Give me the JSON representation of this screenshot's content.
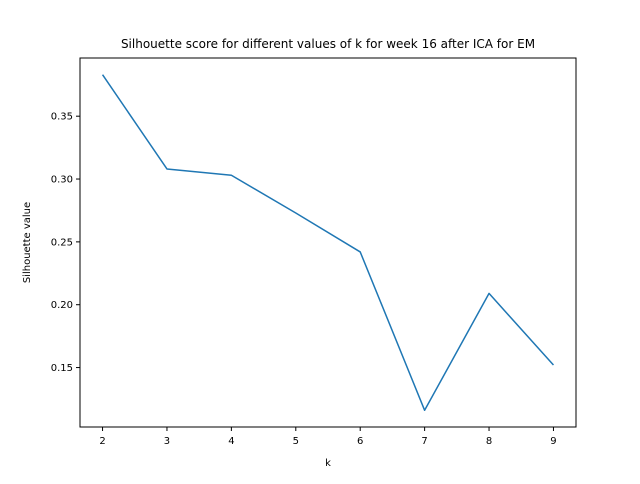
{
  "chart_data": {
    "type": "line",
    "title": "Silhouette score for different values of k for week 16 after ICA for EM",
    "xlabel": "k",
    "ylabel": "Silhouette value",
    "x": [
      2,
      3,
      4,
      5,
      6,
      7,
      8,
      9
    ],
    "series": [
      {
        "values": [
          0.383,
          0.308,
          0.303,
          0.273,
          0.242,
          0.116,
          0.209,
          0.152
        ],
        "color": "#1f77b4"
      }
    ],
    "xlim": [
      1.65,
      9.35
    ],
    "ylim": [
      0.1027,
      0.3963
    ],
    "xticks": [
      2,
      3,
      4,
      5,
      6,
      7,
      8,
      9
    ],
    "yticks": [
      0.15,
      0.2,
      0.25,
      0.3,
      0.35
    ],
    "ytick_labels": [
      "0.15",
      "0.20",
      "0.25",
      "0.30",
      "0.35"
    ],
    "grid": false,
    "legend": "none"
  }
}
